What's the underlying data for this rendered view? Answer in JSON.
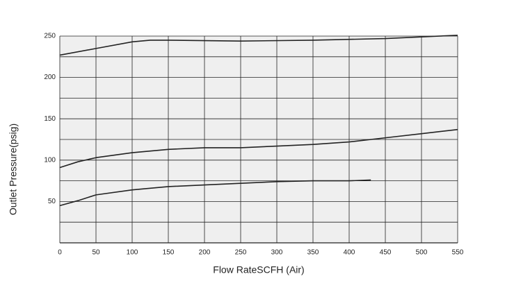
{
  "chart_data": {
    "type": "line",
    "x_label": "Flow RateSCFH (Air)",
    "y_label": "Outlet Pressure(psig)",
    "xlim": [
      0,
      550
    ],
    "xticks": [
      0,
      50,
      100,
      150,
      200,
      250,
      300,
      350,
      400,
      450,
      500,
      550
    ],
    "ylim": [
      0,
      250
    ],
    "yticks": [
      50,
      100,
      150,
      200,
      250
    ],
    "ygrid": [
      25,
      75,
      125,
      175,
      225
    ],
    "grid": true,
    "background": "#efefef",
    "series": [
      {
        "color": "#222222",
        "x": [
          0,
          50,
          100,
          125,
          150,
          250,
          350,
          450,
          550
        ],
        "values": [
          227,
          235,
          243,
          245,
          245,
          244,
          245,
          247,
          251
        ]
      },
      {
        "color": "#222222",
        "x": [
          0,
          25,
          50,
          100,
          150,
          200,
          250,
          300,
          350,
          400,
          450,
          500,
          550
        ],
        "values": [
          91,
          98,
          103,
          109,
          113,
          115,
          115,
          117,
          119,
          122,
          127,
          132,
          137
        ]
      },
      {
        "color": "#222222",
        "x": [
          0,
          25,
          50,
          100,
          150,
          200,
          250,
          300,
          350,
          400,
          430
        ],
        "values": [
          45,
          51,
          58,
          64,
          68,
          70,
          72,
          74,
          75,
          75,
          76
        ]
      }
    ]
  }
}
